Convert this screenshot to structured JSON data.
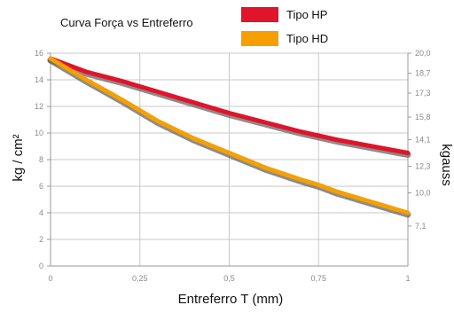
{
  "chart_data": {
    "type": "line",
    "title": "Curva Força vs Entreferro",
    "xlabel": "Entreferro T (mm)",
    "ylabel": "kg / cm²",
    "y2label": "kgauss",
    "xlim": [
      0,
      1
    ],
    "ylim": [
      0,
      16
    ],
    "x_ticks": [
      "0",
      "0,25",
      "0,5",
      "0,75",
      "1"
    ],
    "y_ticks": [
      "0",
      "2",
      "4",
      "6",
      "8",
      "10",
      "12",
      "14",
      "16"
    ],
    "y2_ticks": [
      "20,0",
      "18,7",
      "17,3",
      "15,8",
      "14,1",
      "12,3",
      "10,0",
      "7,1"
    ],
    "y2_tick_positions": [
      16,
      14.5,
      13,
      11.2,
      9.5,
      7.5,
      5.5,
      3
    ],
    "grid": true,
    "legend_position": "top",
    "series": [
      {
        "name": "Tipo HP",
        "color": "#e0142a",
        "x": [
          0,
          0.1,
          0.2,
          0.25,
          0.3,
          0.4,
          0.5,
          0.6,
          0.7,
          0.75,
          0.8,
          0.9,
          1.0
        ],
        "values": [
          15.6,
          14.6,
          13.9,
          13.5,
          13.1,
          12.3,
          11.5,
          10.8,
          10.1,
          9.8,
          9.5,
          9.0,
          8.5
        ]
      },
      {
        "name": "Tipo HD",
        "color": "#f5a000",
        "x": [
          0,
          0.1,
          0.2,
          0.25,
          0.3,
          0.4,
          0.5,
          0.6,
          0.7,
          0.75,
          0.8,
          0.9,
          1.0
        ],
        "values": [
          15.6,
          14.0,
          12.5,
          11.7,
          10.9,
          9.6,
          8.5,
          7.4,
          6.5,
          6.1,
          5.6,
          4.8,
          4.0
        ]
      }
    ]
  }
}
